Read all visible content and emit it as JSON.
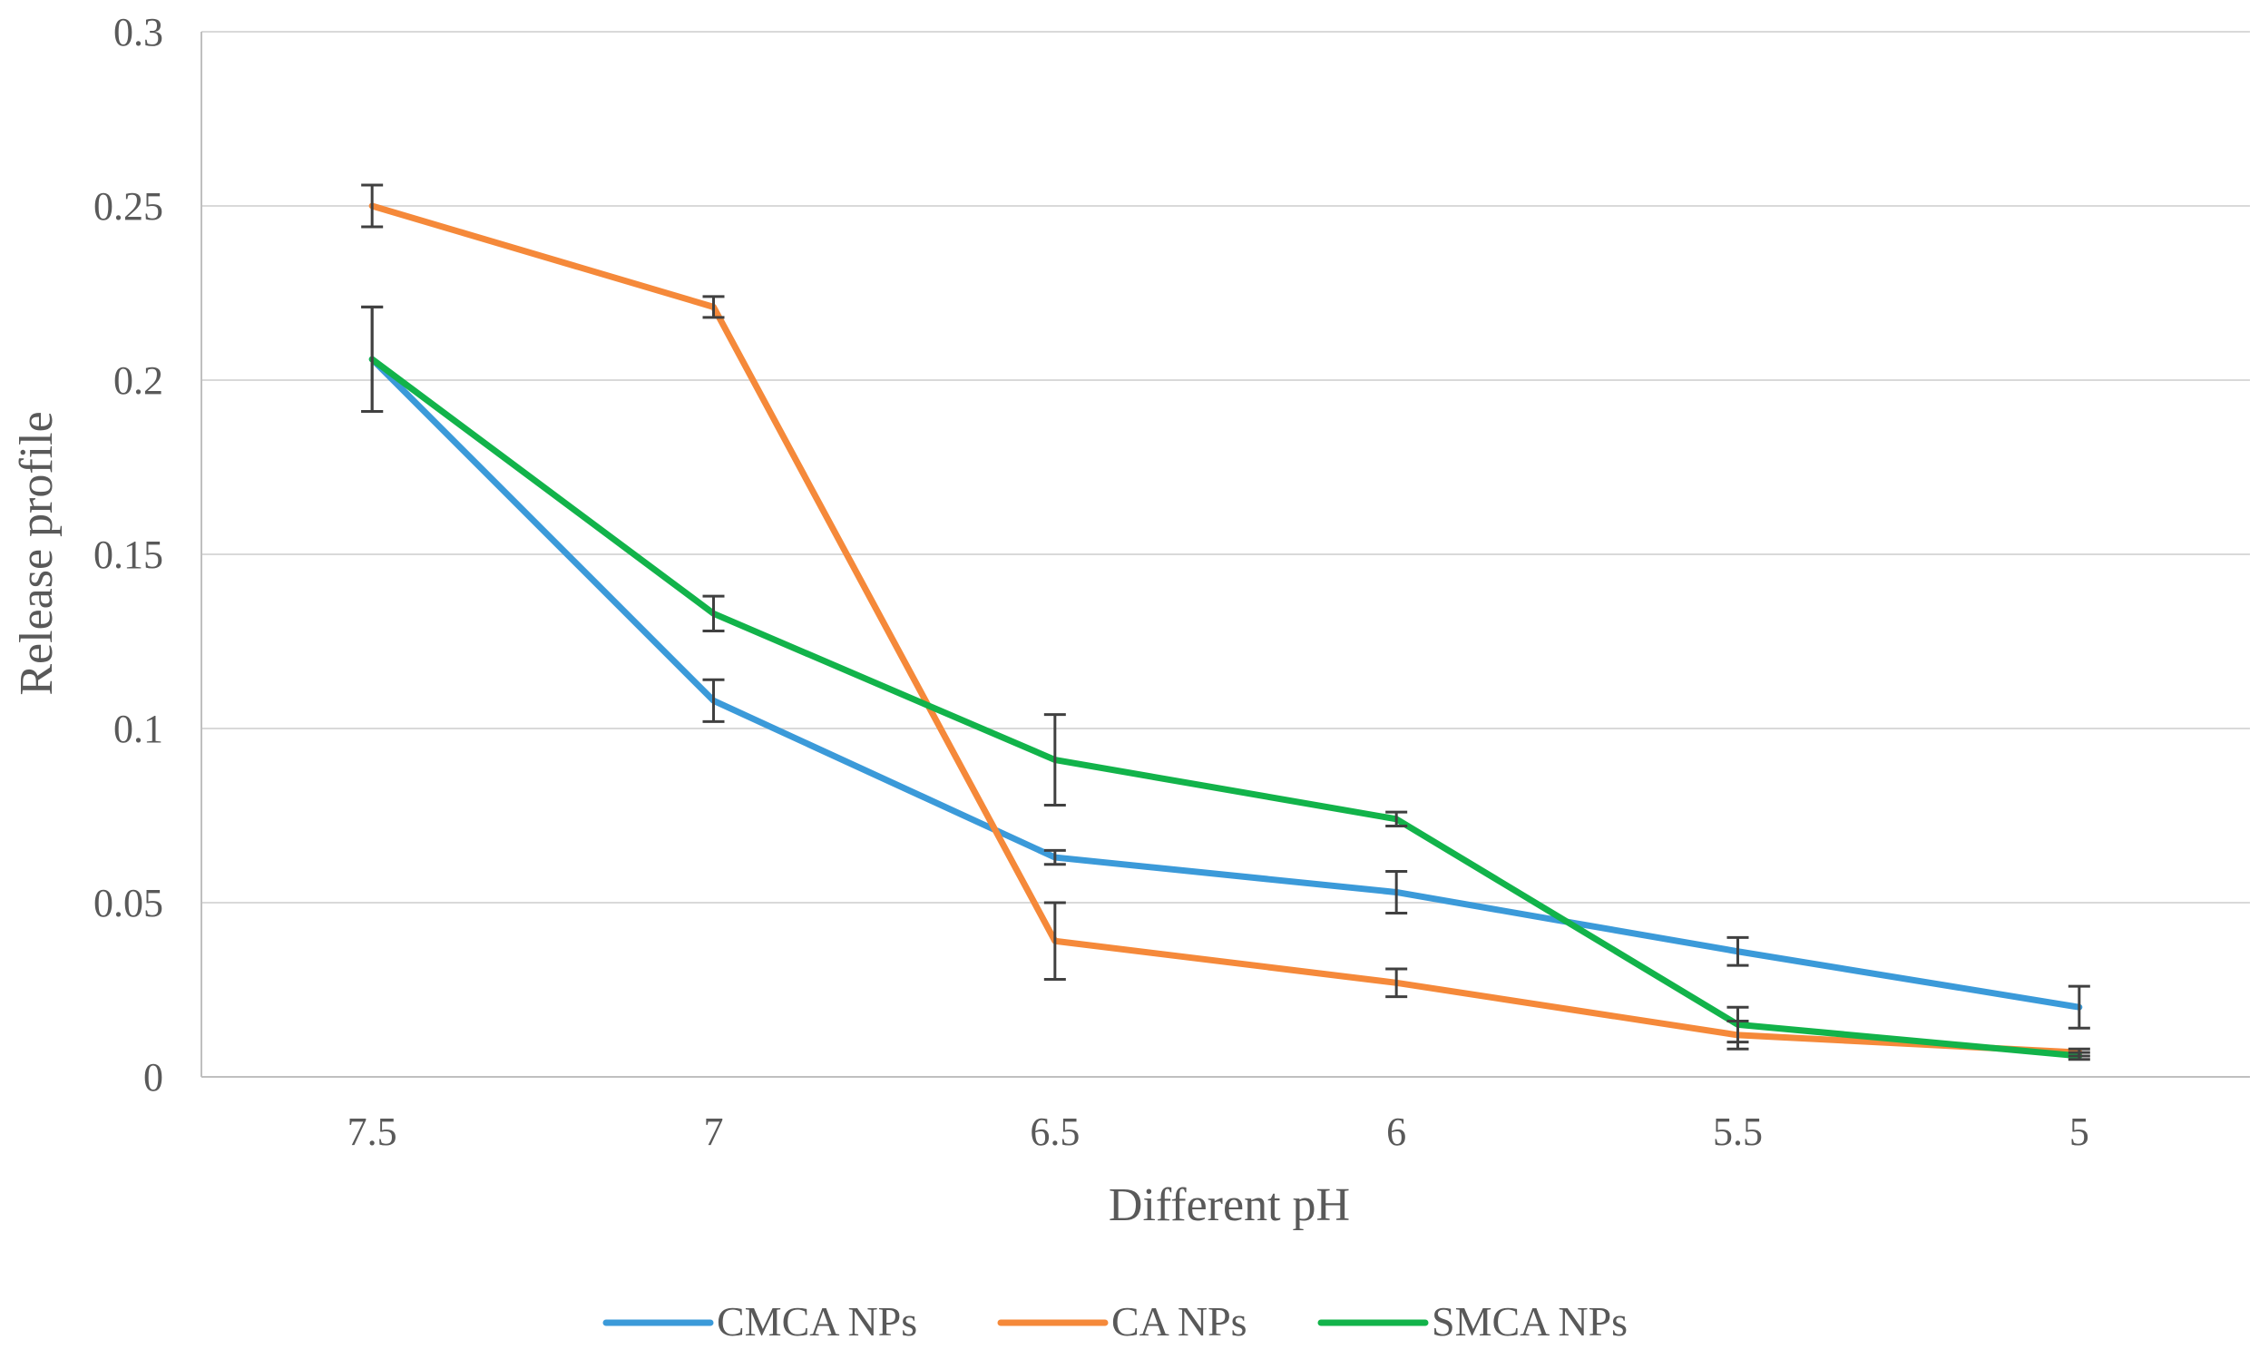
{
  "chart_data": {
    "type": "line",
    "title": "",
    "xlabel": "Different pH",
    "ylabel": "Release profile",
    "categories": [
      "7.5",
      "7",
      "6.5",
      "6",
      "5.5",
      "5"
    ],
    "ylim": [
      0,
      0.3
    ],
    "yticks": [
      0,
      0.05,
      0.1,
      0.15,
      0.2,
      0.25,
      0.3
    ],
    "ytick_labels": [
      "0",
      "0.05",
      "0.1",
      "0.15",
      "0.2",
      "0.25",
      "0.3"
    ],
    "grid": true,
    "legend_position": "bottom",
    "series": [
      {
        "name": "CMCA NPs",
        "color": "#3B9AD9",
        "values": [
          0.206,
          0.108,
          0.063,
          0.053,
          0.036,
          0.02
        ],
        "errors": [
          0.015,
          0.006,
          0.002,
          0.006,
          0.004,
          0.006
        ]
      },
      {
        "name": "CA NPs",
        "color": "#F5893A",
        "values": [
          0.25,
          0.221,
          0.039,
          0.027,
          0.012,
          0.007
        ],
        "errors": [
          0.006,
          0.003,
          0.011,
          0.004,
          0.004,
          0.001
        ]
      },
      {
        "name": "SMCA NPs",
        "color": "#12B34A",
        "values": [
          0.206,
          0.133,
          0.091,
          0.074,
          0.015,
          0.006
        ],
        "errors": [
          0.015,
          0.005,
          0.013,
          0.002,
          0.005,
          0.001
        ]
      }
    ]
  }
}
